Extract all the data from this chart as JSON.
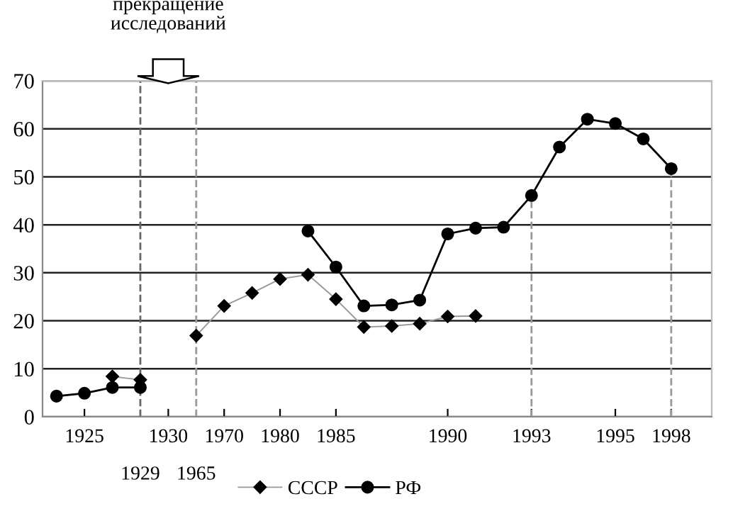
{
  "chart_data": {
    "type": "line",
    "categories": [
      null,
      "1925",
      null,
      "1929",
      "1930",
      "1965",
      "1970",
      null,
      "1980",
      null,
      "1985",
      null,
      null,
      null,
      "1990",
      null,
      null,
      "1993",
      null,
      null,
      "1995",
      null,
      "1998"
    ],
    "series": [
      {
        "name": "СССР",
        "color": "#000000",
        "marker": "diamond",
        "values": [
          null,
          null,
          8.4,
          7.7,
          null,
          16.9,
          23.1,
          25.8,
          28.7,
          29.6,
          24.5,
          18.7,
          18.9,
          19.4,
          20.9,
          21.0,
          null,
          null,
          null,
          null,
          null,
          null,
          null
        ]
      },
      {
        "name": "РФ",
        "color": "#000000",
        "marker": "circle",
        "values": [
          4.3,
          4.9,
          6.1,
          6.1,
          null,
          null,
          null,
          null,
          null,
          38.7,
          31.2,
          23.1,
          23.3,
          24.3,
          38.1,
          39.3,
          39.5,
          46.1,
          56.2,
          62.0,
          61.1,
          57.9,
          51.7
        ]
      }
    ],
    "ylim": [
      0,
      70
    ],
    "yticks": [
      0,
      10,
      20,
      30,
      40,
      50,
      60,
      70
    ],
    "annotations": [
      "прекращение\nисследований"
    ],
    "ref_lines": [
      {
        "axis": "x",
        "value": "1929",
        "color": "#666666",
        "line_style": "dashed"
      },
      {
        "axis": "x",
        "value": "1965",
        "color": "#999999",
        "line_style": "dashed"
      },
      {
        "axis": "x",
        "value": "1993",
        "color": "#999999",
        "line_style": "dashed"
      },
      {
        "axis": "x",
        "value": "1998",
        "color": "#999999",
        "line_style": "dashed"
      }
    ],
    "grid": "y",
    "legend": "bottom"
  }
}
